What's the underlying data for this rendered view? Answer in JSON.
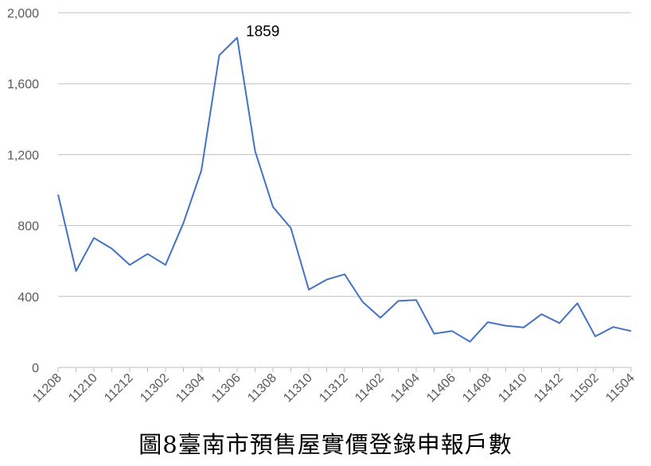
{
  "chart_data": {
    "type": "line",
    "title": "圖8臺南市預售屋實價登錄申報戶數",
    "x": [
      "11208",
      "11209",
      "11210",
      "11211",
      "11212",
      "11301",
      "11302",
      "11303",
      "11304",
      "11305",
      "11306",
      "11307",
      "11308",
      "11309",
      "11310",
      "11311",
      "11312",
      "11401",
      "11402",
      "11403",
      "11404",
      "11405",
      "11406",
      "11407",
      "11408",
      "11409",
      "11410",
      "11411",
      "11412",
      "11501",
      "11502",
      "11503",
      "11504"
    ],
    "x_tick_labels": [
      "11208",
      "11210",
      "11212",
      "11302",
      "11304",
      "11306",
      "11308",
      "11310",
      "11312",
      "11402",
      "11404",
      "11406",
      "11408",
      "11410",
      "11412",
      "11502",
      "11504"
    ],
    "series": [
      {
        "color": "#4472C4",
        "values": [
          975,
          543,
          730,
          670,
          578,
          640,
          578,
          815,
          1110,
          1760,
          1859,
          1220,
          905,
          785,
          438,
          495,
          525,
          370,
          280,
          375,
          380,
          190,
          205,
          145,
          255,
          235,
          225,
          300,
          250,
          362,
          175,
          228,
          205
        ]
      }
    ],
    "annotation": {
      "x": "11306",
      "text": "1859"
    },
    "ylim": [
      0,
      2000
    ],
    "y_ticks": [
      0,
      400,
      800,
      1200,
      1600,
      2000
    ],
    "y_tick_labels": [
      "0",
      "400",
      "800",
      "1,200",
      "1,600",
      "2,000"
    ],
    "grid": "horizontal",
    "legend": "none",
    "xlabel": "",
    "ylabel": ""
  }
}
